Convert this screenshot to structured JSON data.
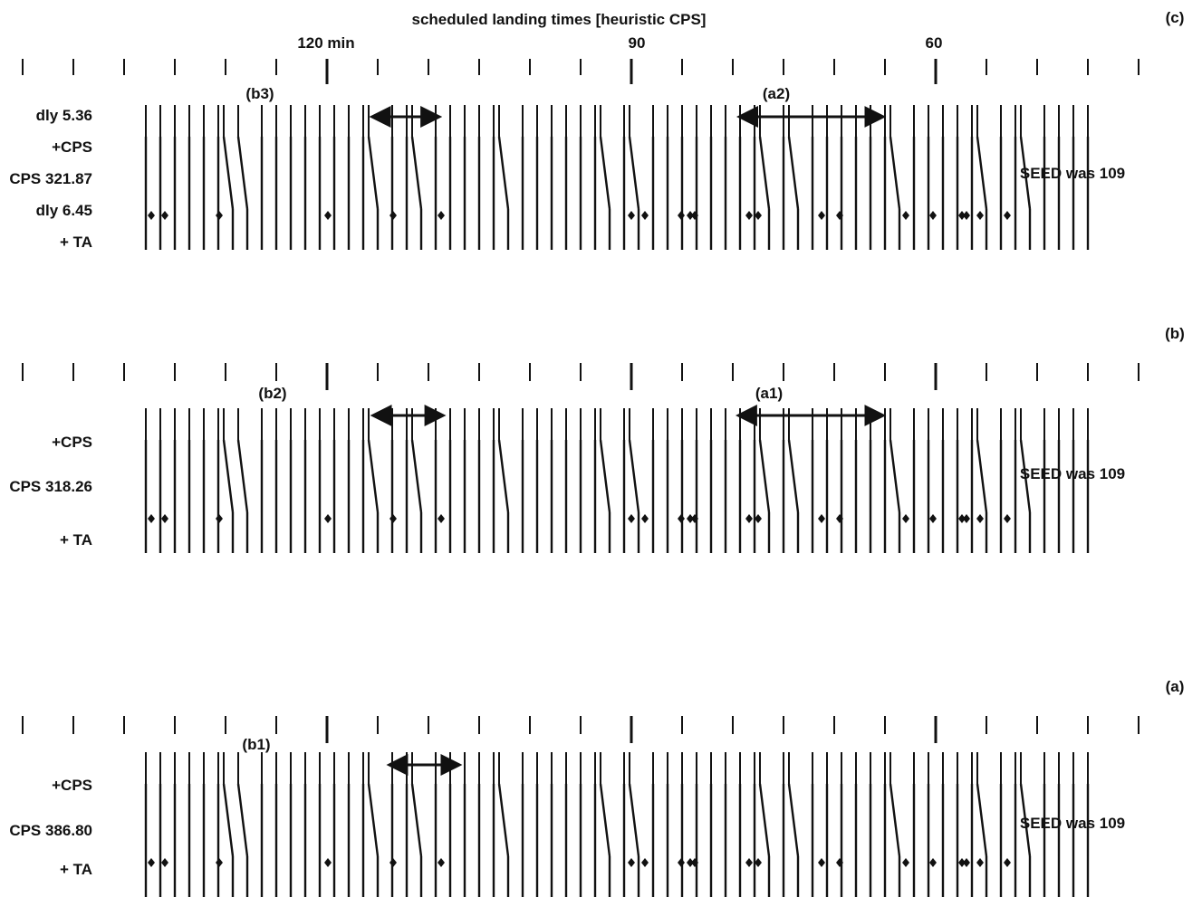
{
  "x_axis": {
    "label": "scheduled landing times [heuristic CPS]",
    "ticks": [
      {
        "value": 60,
        "label": "60"
      },
      {
        "value": 90,
        "label": "90"
      },
      {
        "value": 120,
        "label": "120 min"
      }
    ]
  },
  "panels": [
    {
      "id": "a",
      "tag": "(a)",
      "seed_label": "SEED was 109",
      "row_labels": [
        "+ TA",
        "CPS 386.80",
        "+CPS"
      ],
      "arrows": [
        {
          "label": "(b1)",
          "from": 114.0,
          "to": 107.0
        }
      ]
    },
    {
      "id": "b",
      "tag": "(b)",
      "seed_label": "SEED was 109",
      "row_labels": [
        "+ TA",
        "CPS 318.26",
        "+CPS"
      ],
      "arrows": [
        {
          "label": "(a1)",
          "from": 79.4,
          "to": 65.0
        },
        {
          "label": "(b2)",
          "from": 115.6,
          "to": 108.6
        }
      ]
    },
    {
      "id": "c",
      "tag": "(c)",
      "seed_label": "SEED was 109",
      "row_labels": [
        "+ TA",
        "dly 6.45",
        "CPS 321.87",
        "+CPS",
        "dly 5.36"
      ],
      "arrows": [
        {
          "label": "(a2)",
          "from": 79.3,
          "to": 65.0
        },
        {
          "label": "(b3)",
          "from": 115.7,
          "to": 109.0
        }
      ]
    }
  ]
}
